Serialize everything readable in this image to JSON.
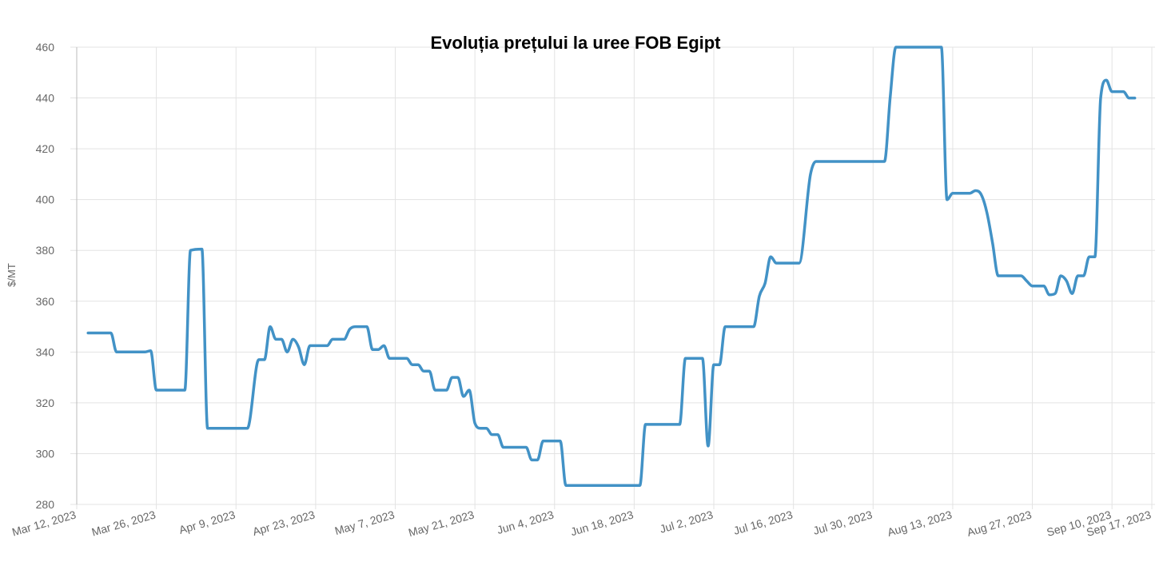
{
  "chart_data": {
    "type": "line",
    "title": "Evoluția prețului la uree FOB Egipt",
    "ylabel": "$/MT",
    "ylim": [
      280,
      460
    ],
    "yticks": [
      280,
      300,
      320,
      340,
      360,
      380,
      400,
      420,
      440,
      460
    ],
    "x_range": [
      "2023-03-12",
      "2023-09-17"
    ],
    "xticks": [
      {
        "date": "2023-03-12",
        "label": "Mar 12, 2023"
      },
      {
        "date": "2023-03-26",
        "label": "Mar 26, 2023"
      },
      {
        "date": "2023-04-09",
        "label": "Apr 9, 2023"
      },
      {
        "date": "2023-04-23",
        "label": "Apr 23, 2023"
      },
      {
        "date": "2023-05-07",
        "label": "May 7, 2023"
      },
      {
        "date": "2023-05-21",
        "label": "May 21, 2023"
      },
      {
        "date": "2023-06-04",
        "label": "Jun 4, 2023"
      },
      {
        "date": "2023-06-18",
        "label": "Jun 18, 2023"
      },
      {
        "date": "2023-07-02",
        "label": "Jul 2, 2023"
      },
      {
        "date": "2023-07-16",
        "label": "Jul 16, 2023"
      },
      {
        "date": "2023-07-30",
        "label": "Jul 30, 2023"
      },
      {
        "date": "2023-08-13",
        "label": "Aug 13, 2023"
      },
      {
        "date": "2023-08-27",
        "label": "Aug 27, 2023"
      },
      {
        "date": "2023-09-10",
        "label": "Sep 10, 2023"
      },
      {
        "date": "2023-09-17",
        "label": "Sep 17, 2023"
      }
    ],
    "grid": true,
    "legend": "none",
    "color": "#4292c6",
    "series": [
      {
        "points": [
          [
            "2023-03-14",
            347.5
          ],
          [
            "2023-03-17",
            347.5
          ],
          [
            "2023-03-18",
            347.5
          ],
          [
            "2023-03-19",
            340
          ],
          [
            "2023-03-21",
            340
          ],
          [
            "2023-03-24",
            340
          ],
          [
            "2023-03-25",
            340.5
          ],
          [
            "2023-03-26",
            325
          ],
          [
            "2023-03-28",
            325
          ],
          [
            "2023-03-31",
            325
          ],
          [
            "2023-04-01",
            380
          ],
          [
            "2023-04-03",
            380.5
          ],
          [
            "2023-04-04",
            310
          ],
          [
            "2023-04-06",
            310
          ],
          [
            "2023-04-09",
            310
          ],
          [
            "2023-04-11",
            310
          ],
          [
            "2023-04-13",
            337
          ],
          [
            "2023-04-14",
            337
          ],
          [
            "2023-04-15",
            350
          ],
          [
            "2023-04-16",
            345
          ],
          [
            "2023-04-17",
            345
          ],
          [
            "2023-04-18",
            340
          ],
          [
            "2023-04-19",
            345
          ],
          [
            "2023-04-20",
            342
          ],
          [
            "2023-04-21",
            335
          ],
          [
            "2023-04-22",
            342.5
          ],
          [
            "2023-04-23",
            342.5
          ],
          [
            "2023-04-25",
            342.5
          ],
          [
            "2023-04-26",
            345
          ],
          [
            "2023-04-28",
            345
          ],
          [
            "2023-04-29",
            349
          ],
          [
            "2023-04-30",
            350
          ],
          [
            "2023-05-02",
            350
          ],
          [
            "2023-05-03",
            341
          ],
          [
            "2023-05-04",
            341
          ],
          [
            "2023-05-05",
            342.5
          ],
          [
            "2023-05-06",
            337.5
          ],
          [
            "2023-05-07",
            337.5
          ],
          [
            "2023-05-09",
            337.5
          ],
          [
            "2023-05-10",
            335
          ],
          [
            "2023-05-11",
            335
          ],
          [
            "2023-05-12",
            332.5
          ],
          [
            "2023-05-13",
            332.5
          ],
          [
            "2023-05-14",
            325
          ],
          [
            "2023-05-16",
            325
          ],
          [
            "2023-05-17",
            330
          ],
          [
            "2023-05-18",
            330
          ],
          [
            "2023-05-19",
            322.5
          ],
          [
            "2023-05-20",
            325
          ],
          [
            "2023-05-21",
            312
          ],
          [
            "2023-05-22",
            310
          ],
          [
            "2023-05-23",
            310
          ],
          [
            "2023-05-24",
            307.5
          ],
          [
            "2023-05-25",
            307.5
          ],
          [
            "2023-05-26",
            302.5
          ],
          [
            "2023-05-28",
            302.5
          ],
          [
            "2023-05-30",
            302.5
          ],
          [
            "2023-05-31",
            297.5
          ],
          [
            "2023-06-01",
            297.5
          ],
          [
            "2023-06-02",
            305
          ],
          [
            "2023-06-04",
            305
          ],
          [
            "2023-06-05",
            305
          ],
          [
            "2023-06-06",
            287.5
          ],
          [
            "2023-06-10",
            287.5
          ],
          [
            "2023-06-14",
            287.5
          ],
          [
            "2023-06-18",
            287.5
          ],
          [
            "2023-06-19",
            287.5
          ],
          [
            "2023-06-20",
            311.5
          ],
          [
            "2023-06-23",
            311.5
          ],
          [
            "2023-06-26",
            311.5
          ],
          [
            "2023-06-27",
            337.5
          ],
          [
            "2023-06-29",
            337.5
          ],
          [
            "2023-06-30",
            337.5
          ],
          [
            "2023-07-01",
            303
          ],
          [
            "2023-07-02",
            335
          ],
          [
            "2023-07-03",
            335
          ],
          [
            "2023-07-04",
            350
          ],
          [
            "2023-07-06",
            350
          ],
          [
            "2023-07-09",
            350
          ],
          [
            "2023-07-10",
            362
          ],
          [
            "2023-07-11",
            367
          ],
          [
            "2023-07-12",
            377.5
          ],
          [
            "2023-07-13",
            375
          ],
          [
            "2023-07-15",
            375
          ],
          [
            "2023-07-17",
            375
          ],
          [
            "2023-07-19",
            410
          ],
          [
            "2023-07-20",
            415
          ],
          [
            "2023-07-23",
            415
          ],
          [
            "2023-07-26",
            415
          ],
          [
            "2023-08-01",
            415
          ],
          [
            "2023-08-02",
            440
          ],
          [
            "2023-08-03",
            460
          ],
          [
            "2023-08-06",
            460
          ],
          [
            "2023-08-09",
            460
          ],
          [
            "2023-08-11",
            460
          ],
          [
            "2023-08-12",
            400
          ],
          [
            "2023-08-13",
            402.5
          ],
          [
            "2023-08-15",
            402.5
          ],
          [
            "2023-08-16",
            402.5
          ],
          [
            "2023-08-17",
            403.5
          ],
          [
            "2023-08-18",
            402
          ],
          [
            "2023-08-19",
            395
          ],
          [
            "2023-08-20",
            383
          ],
          [
            "2023-08-21",
            370
          ],
          [
            "2023-08-23",
            370
          ],
          [
            "2023-08-25",
            370
          ],
          [
            "2023-08-26",
            368
          ],
          [
            "2023-08-27",
            366
          ],
          [
            "2023-08-28",
            366
          ],
          [
            "2023-08-29",
            366
          ],
          [
            "2023-08-30",
            362.5
          ],
          [
            "2023-08-31",
            363
          ],
          [
            "2023-09-01",
            370
          ],
          [
            "2023-09-02",
            368
          ],
          [
            "2023-09-03",
            363
          ],
          [
            "2023-09-04",
            370
          ],
          [
            "2023-09-05",
            370
          ],
          [
            "2023-09-06",
            377.5
          ],
          [
            "2023-09-07",
            377.5
          ],
          [
            "2023-09-08",
            440
          ],
          [
            "2023-09-09",
            447
          ],
          [
            "2023-09-10",
            442.5
          ],
          [
            "2023-09-11",
            442.5
          ],
          [
            "2023-09-12",
            442.5
          ],
          [
            "2023-09-13",
            440
          ],
          [
            "2023-09-14",
            440
          ]
        ]
      }
    ]
  }
}
